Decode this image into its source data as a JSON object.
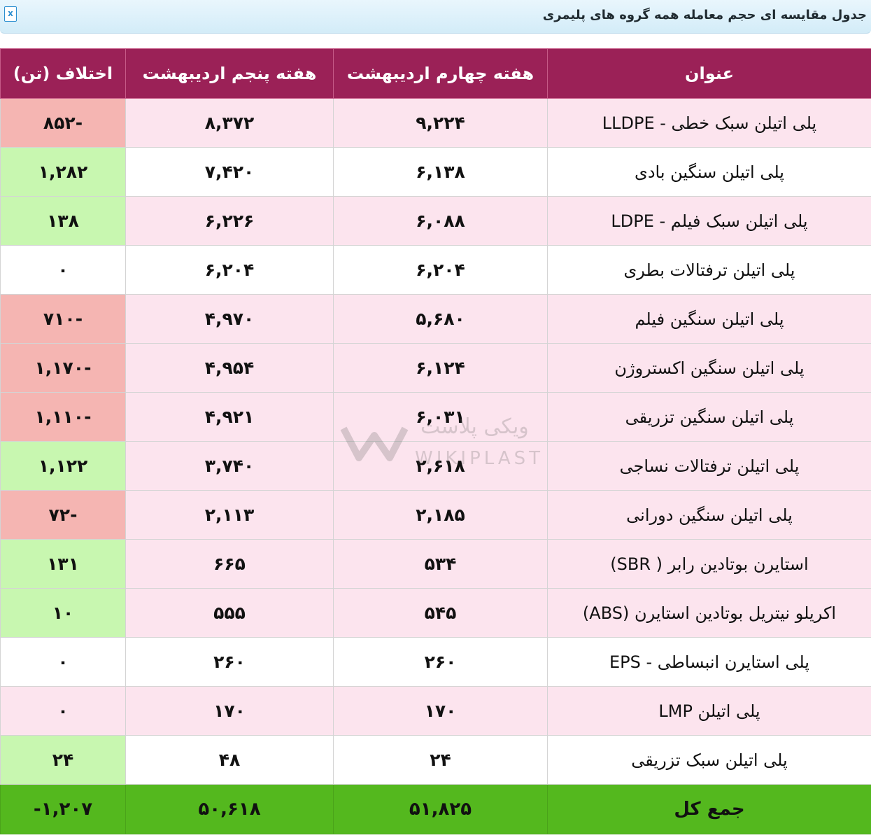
{
  "title": "جدول مقایسه ای حجم معامله همه گروه های پلیمری",
  "icons": {
    "title_icon": "excel-file-icon"
  },
  "headers": {
    "title_col": "عنوان",
    "week4": "هفته چهارم اردیبهشت",
    "week5": "هفته پنجم اردیبهشت",
    "diff": "اختلاف (تن)"
  },
  "rows": [
    {
      "name": "پلی اتیلن سبک خطی - LLDPE",
      "w4": "۹,۲۲۴",
      "w5": "۸,۳۷۲",
      "diff": "-۸۵۲",
      "diff_sign": "neg"
    },
    {
      "name": "پلی اتیلن سنگین بادی",
      "w4": "۶,۱۳۸",
      "w5": "۷,۴۲۰",
      "diff": "۱,۲۸۲",
      "diff_sign": "pos"
    },
    {
      "name": "پلی اتیلن سبک فیلم - LDPE",
      "w4": "۶,۰۸۸",
      "w5": "۶,۲۲۶",
      "diff": "۱۳۸",
      "diff_sign": "pos"
    },
    {
      "name": "پلی اتیلن ترفتالات بطری",
      "w4": "۶,۲۰۴",
      "w5": "۶,۲۰۴",
      "diff": "۰",
      "diff_sign": "zero"
    },
    {
      "name": "پلی اتیلن سنگین فیلم",
      "w4": "۵,۶۸۰",
      "w5": "۴,۹۷۰",
      "diff": "-۷۱۰",
      "diff_sign": "neg"
    },
    {
      "name": "پلی اتیلن سنگین اکستروژن",
      "w4": "۶,۱۲۴",
      "w5": "۴,۹۵۴",
      "diff": "-۱,۱۷۰",
      "diff_sign": "neg"
    },
    {
      "name": "پلی اتیلن سنگین تزریقی",
      "w4": "۶,۰۳۱",
      "w5": "۴,۹۲۱",
      "diff": "-۱,۱۱۰",
      "diff_sign": "neg"
    },
    {
      "name": "پلی اتیلن ترفتالات نساجی",
      "w4": "۲,۶۱۸",
      "w5": "۳,۷۴۰",
      "diff": "۱,۱۲۲",
      "diff_sign": "pos"
    },
    {
      "name": "پلی اتیلن سنگین دورانی",
      "w4": "۲,۱۸۵",
      "w5": "۲,۱۱۳",
      "diff": "-۷۲",
      "diff_sign": "neg"
    },
    {
      "name": "استایرن بوتادین رابر ( SBR)",
      "w4": "۵۳۴",
      "w5": "۶۶۵",
      "diff": "۱۳۱",
      "diff_sign": "pos"
    },
    {
      "name": "اکریلو نیتریل بوتادین استایرن (ABS)",
      "w4": "۵۴۵",
      "w5": "۵۵۵",
      "diff": "۱۰",
      "diff_sign": "pos"
    },
    {
      "name": "پلی استایرن انبساطی - EPS",
      "w4": "۲۶۰",
      "w5": "۲۶۰",
      "diff": "۰",
      "diff_sign": "zero"
    },
    {
      "name": "پلی اتیلن LMP",
      "w4": "۱۷۰",
      "w5": "۱۷۰",
      "diff": "۰",
      "diff_sign": "zero"
    },
    {
      "name": "پلی اتیلن سبک تزریقی",
      "w4": "۲۴",
      "w5": "۴۸",
      "diff": "۲۴",
      "diff_sign": "pos"
    }
  ],
  "total": {
    "name": "جمع کل",
    "w4": "۵۱,۸۲۵",
    "w5": "۵۰,۶۱۸",
    "diff": "۱,۲۰۷-"
  },
  "watermark": {
    "fa": "ویکی پلاست",
    "en": "WIKIPLAST"
  },
  "colors": {
    "header_bg": "#9b2157",
    "row_pink": "#fce4ee",
    "diff_negative": "#f5b5b2",
    "diff_positive": "#c8f7b0",
    "total_bg": "#54b81e"
  }
}
